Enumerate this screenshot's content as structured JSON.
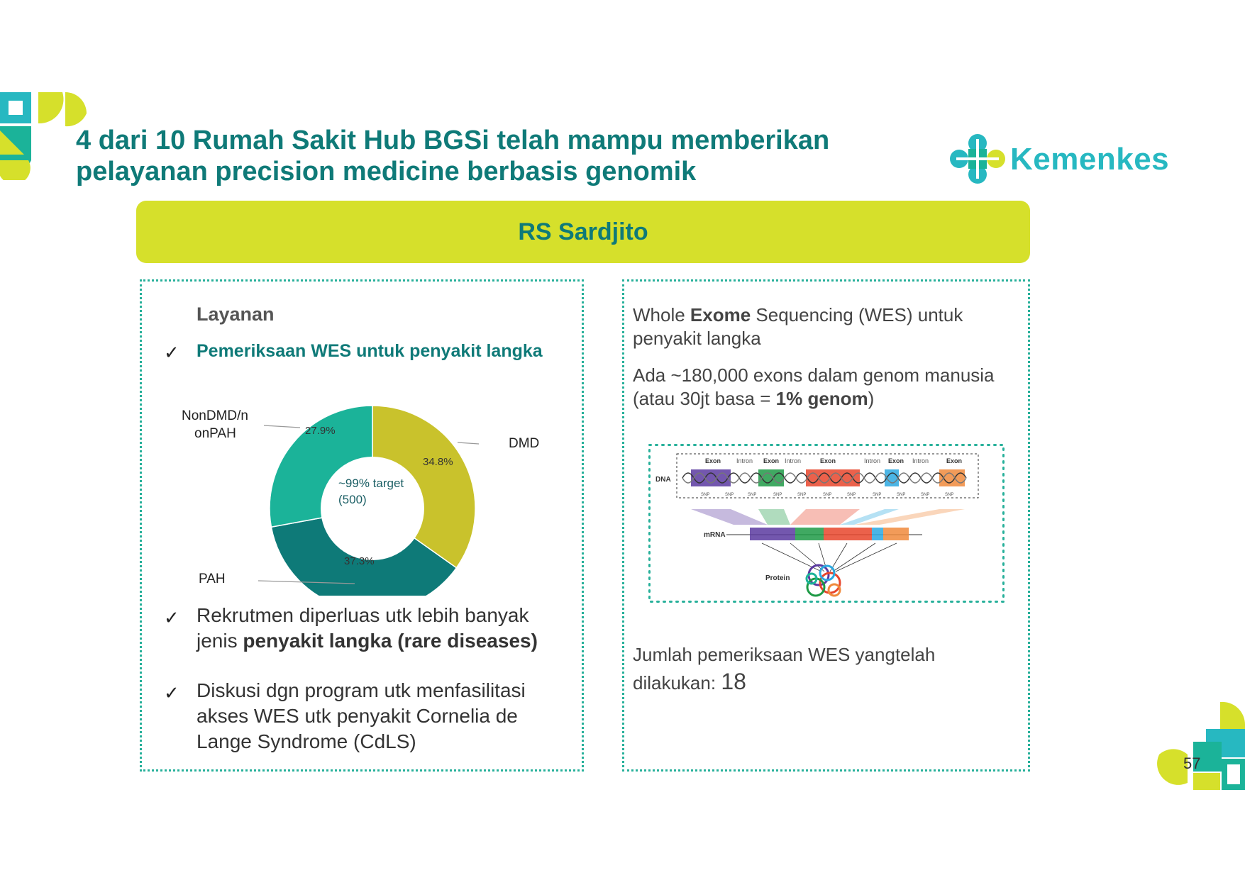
{
  "slide": {
    "title": "4 dari 10 Rumah Sakit Hub BGSi telah mampu memberikan pelayanan precision medicine berbasis genomik",
    "logo_text": "Kemenkes",
    "banner": "RS Sardjito",
    "page_number": "57",
    "brand_colors": {
      "teal": "#0f7a78",
      "lime": "#d6e02b",
      "cyan": "#27b8c1"
    }
  },
  "left": {
    "heading": "Layanan",
    "check_mark": "✓",
    "service_item": "Pemeriksaan WES untuk penyakit langka",
    "bullets": [
      {
        "text_before": "Rekrutmen diperluas utk lebih banyak jenis ",
        "bold": "penyakit langka (rare diseases)",
        "text_after": ""
      },
      {
        "text_before": "Diskusi dgn program utk menfasilitasi akses WES utk penyakit Cornelia de Lange Syndrome (CdLS)",
        "bold": "",
        "text_after": ""
      }
    ]
  },
  "chart_data": {
    "type": "pie",
    "donut": true,
    "center_label_line1": "~99% target",
    "center_label_line2": "(500)",
    "slices": [
      {
        "name": "DMD",
        "value": 34.8,
        "label": "34.8%",
        "color": "#c9c22c"
      },
      {
        "name": "PAH",
        "value": 37.3,
        "label": "37.3%",
        "color": "#0e7a78"
      },
      {
        "name": "NonDMD/nonPAH",
        "value": 27.9,
        "label": "27.9%",
        "color": "#1bb399"
      }
    ],
    "category_labels": {
      "dmd": "DMD",
      "pah": "PAH",
      "non_line1": "NonDMD/n",
      "non_line2": "onPAH"
    }
  },
  "right": {
    "p1_before": "Whole ",
    "p1_bold": "Exome",
    "p1_after": " Sequencing (WES) untuk penyakit langka",
    "p2_before": "Ada  ~180,000 exons dalam genom manusia (atau 30jt basa = ",
    "p2_bold": "1% genom",
    "p2_after": ")",
    "p3": "Jumlah pemeriksaan WES yangtelah dilakukan: ",
    "count": "18",
    "diagram": {
      "dna_label": "DNA",
      "mrna_label": "mRNA",
      "protein_label": "Protein",
      "segment_labels": [
        "Exon",
        "Intron",
        "Exon",
        "Intron",
        "Exon",
        "Intron",
        "Exon",
        "Intron",
        "Exon"
      ],
      "snp_label": "SNP"
    }
  }
}
